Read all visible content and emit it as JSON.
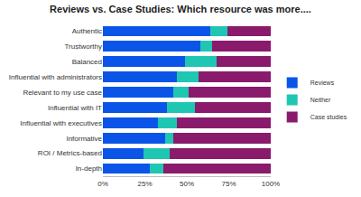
{
  "chart_data": {
    "type": "bar",
    "title": "Reviews vs. Case Studies: Which resource was more....",
    "orientation": "horizontal",
    "stacked": true,
    "legend": "right",
    "grid": false,
    "categories": [
      "Authentic",
      "Trustworthy",
      "Balanced",
      "Influential with administrators",
      "Relevant to my use case",
      "Influential with IT",
      "Influential with executives",
      "Informative",
      "ROI / Metrics-based",
      "In-depth"
    ],
    "series": [
      {
        "name": "Reviews",
        "color": "#0a55e8",
        "values": [
          64,
          58,
          49,
          44,
          42,
          38,
          33,
          37,
          24,
          28
        ]
      },
      {
        "name": "Neither",
        "color": "#1fc7b2",
        "values": [
          10,
          7,
          19,
          13,
          9,
          17,
          11,
          5,
          16,
          8
        ]
      },
      {
        "name": "Case studies",
        "color": "#8a1a6c",
        "values": [
          26,
          35,
          32,
          43,
          49,
          45,
          56,
          58,
          60,
          64
        ]
      }
    ],
    "xlim": [
      0,
      100
    ],
    "xticks": [
      {
        "value": 0,
        "label": "0%"
      },
      {
        "value": 25,
        "label": "25%"
      },
      {
        "value": 50,
        "label": "50%"
      },
      {
        "value": 75,
        "label": "75%"
      },
      {
        "value": 100,
        "label": "100%"
      }
    ]
  }
}
